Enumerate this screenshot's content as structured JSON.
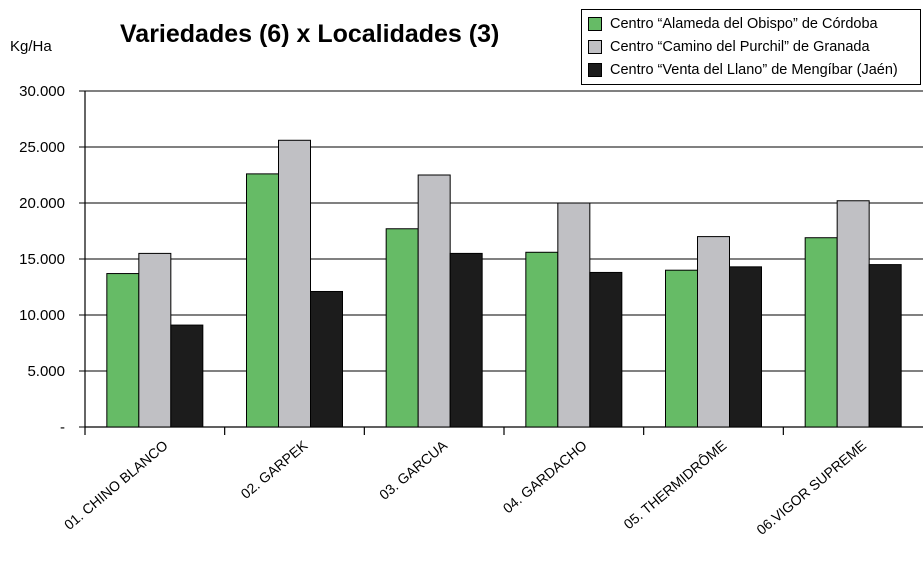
{
  "chart_data": {
    "type": "bar",
    "title": "Variedades (6) x Localidades (3)",
    "ylabel": "Kg/Ha",
    "xlabel": "",
    "ylim": [
      0,
      30000
    ],
    "ytick_labels": [
      "-",
      "5.000",
      "10.000",
      "15.000",
      "20.000",
      "25.000",
      "30.000"
    ],
    "ytick_values": [
      0,
      5000,
      10000,
      15000,
      20000,
      25000,
      30000
    ],
    "categories": [
      "01. CHINO BLANCO",
      "02. GARPEK",
      "03. GARCUA",
      "04. GARDACHO",
      "05. THERMIDRÔME",
      "06.VIGOR SUPREME"
    ],
    "series": [
      {
        "name": "Centro “Alameda del Obispo” de Córdoba",
        "color": "#66bb66",
        "values": [
          13700,
          22600,
          17700,
          15600,
          14000,
          16900
        ]
      },
      {
        "name": "Centro “Camino del Purchil” de Granada",
        "color": "#c0c0c4",
        "values": [
          15500,
          25600,
          22500,
          20000,
          17000,
          20200
        ]
      },
      {
        "name": "Centro “Venta del Llano” de Mengíbar (Jaén)",
        "color": "#1c1c1c",
        "values": [
          9100,
          12100,
          15500,
          13800,
          14300,
          14500
        ]
      }
    ],
    "grid": true,
    "legend_position": "top-right"
  }
}
